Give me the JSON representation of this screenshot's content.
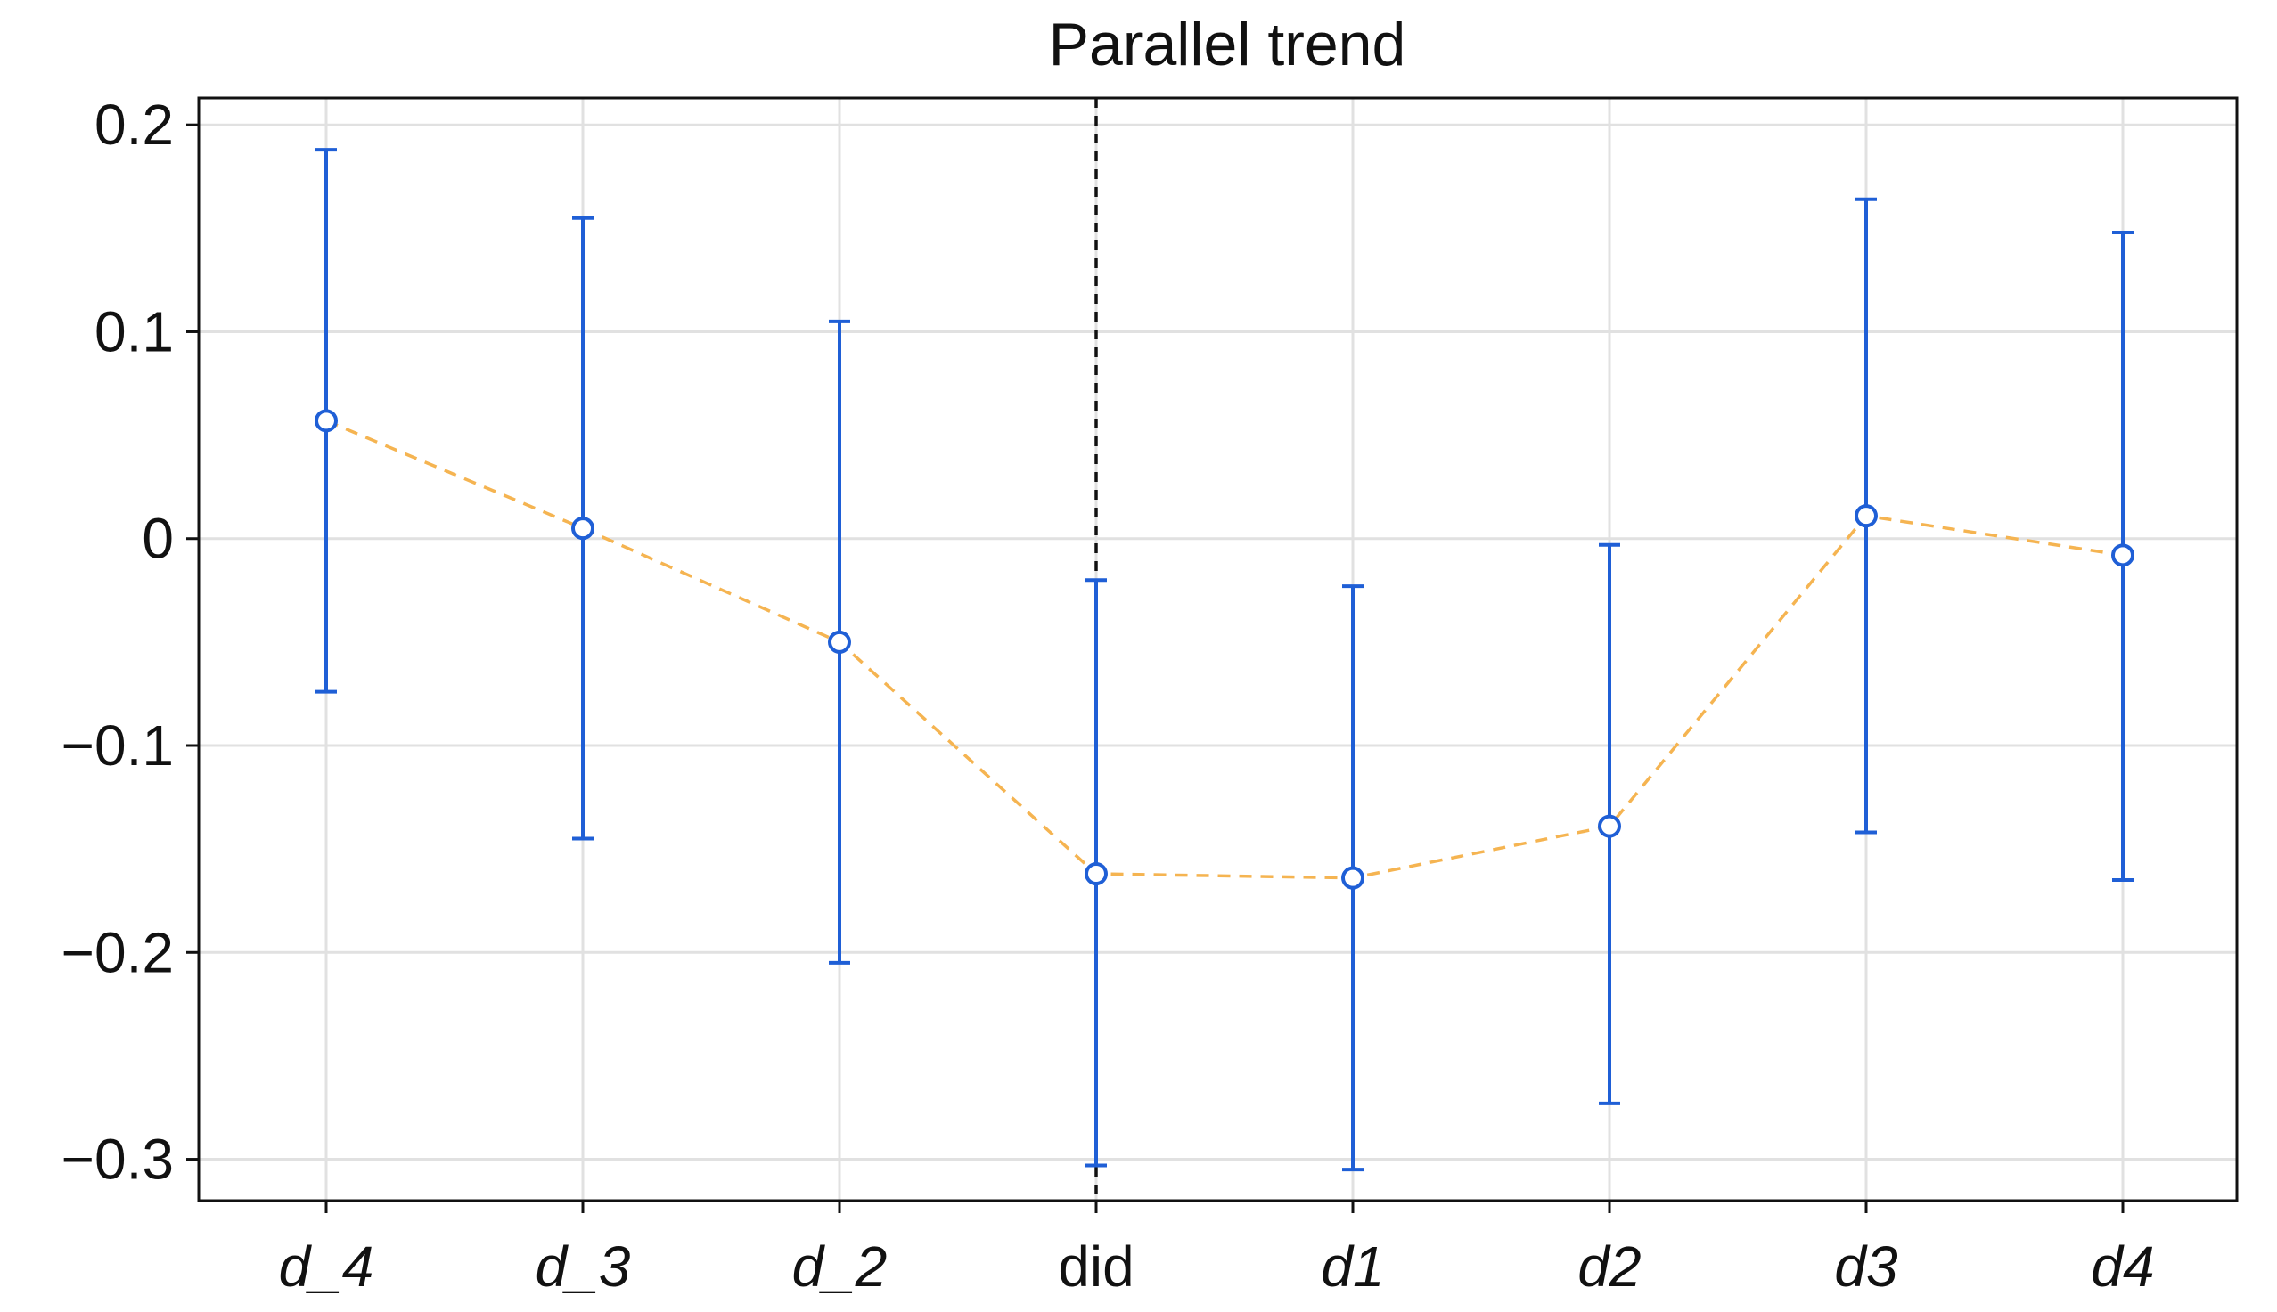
{
  "chart_data": {
    "type": "scatter",
    "title": "Parallel trend",
    "xlabel": "",
    "ylabel": "",
    "categories": [
      "d_4",
      "d_3",
      "d_2",
      "did",
      "d1",
      "d2",
      "d3",
      "d4"
    ],
    "category_italic": [
      true,
      true,
      true,
      false,
      true,
      true,
      true,
      true
    ],
    "estimates": [
      0.057,
      0.005,
      -0.05,
      -0.162,
      -0.164,
      -0.139,
      0.011,
      -0.008
    ],
    "ci_lower": [
      -0.074,
      -0.145,
      -0.205,
      -0.303,
      -0.305,
      -0.273,
      -0.142,
      -0.165
    ],
    "ci_upper": [
      0.188,
      0.155,
      0.105,
      -0.02,
      -0.023,
      -0.003,
      0.164,
      0.148
    ],
    "ylim": [
      -0.32,
      0.213
    ],
    "yticks": [
      0.2,
      0.1,
      0,
      -0.1,
      -0.2,
      -0.3
    ],
    "ytick_labels": [
      "0.2",
      "0.1",
      "0",
      "−0.1",
      "−0.2",
      "−0.3"
    ],
    "reference_line_category": "did",
    "grid": true,
    "colors": {
      "errorbar": "#1f5fd6",
      "marker_edge": "#1f5fd6",
      "marker_fill": "#ffffff",
      "connecting_line": "#f5b451",
      "reference_line": "#111111",
      "grid": "#e1e1e1"
    }
  }
}
